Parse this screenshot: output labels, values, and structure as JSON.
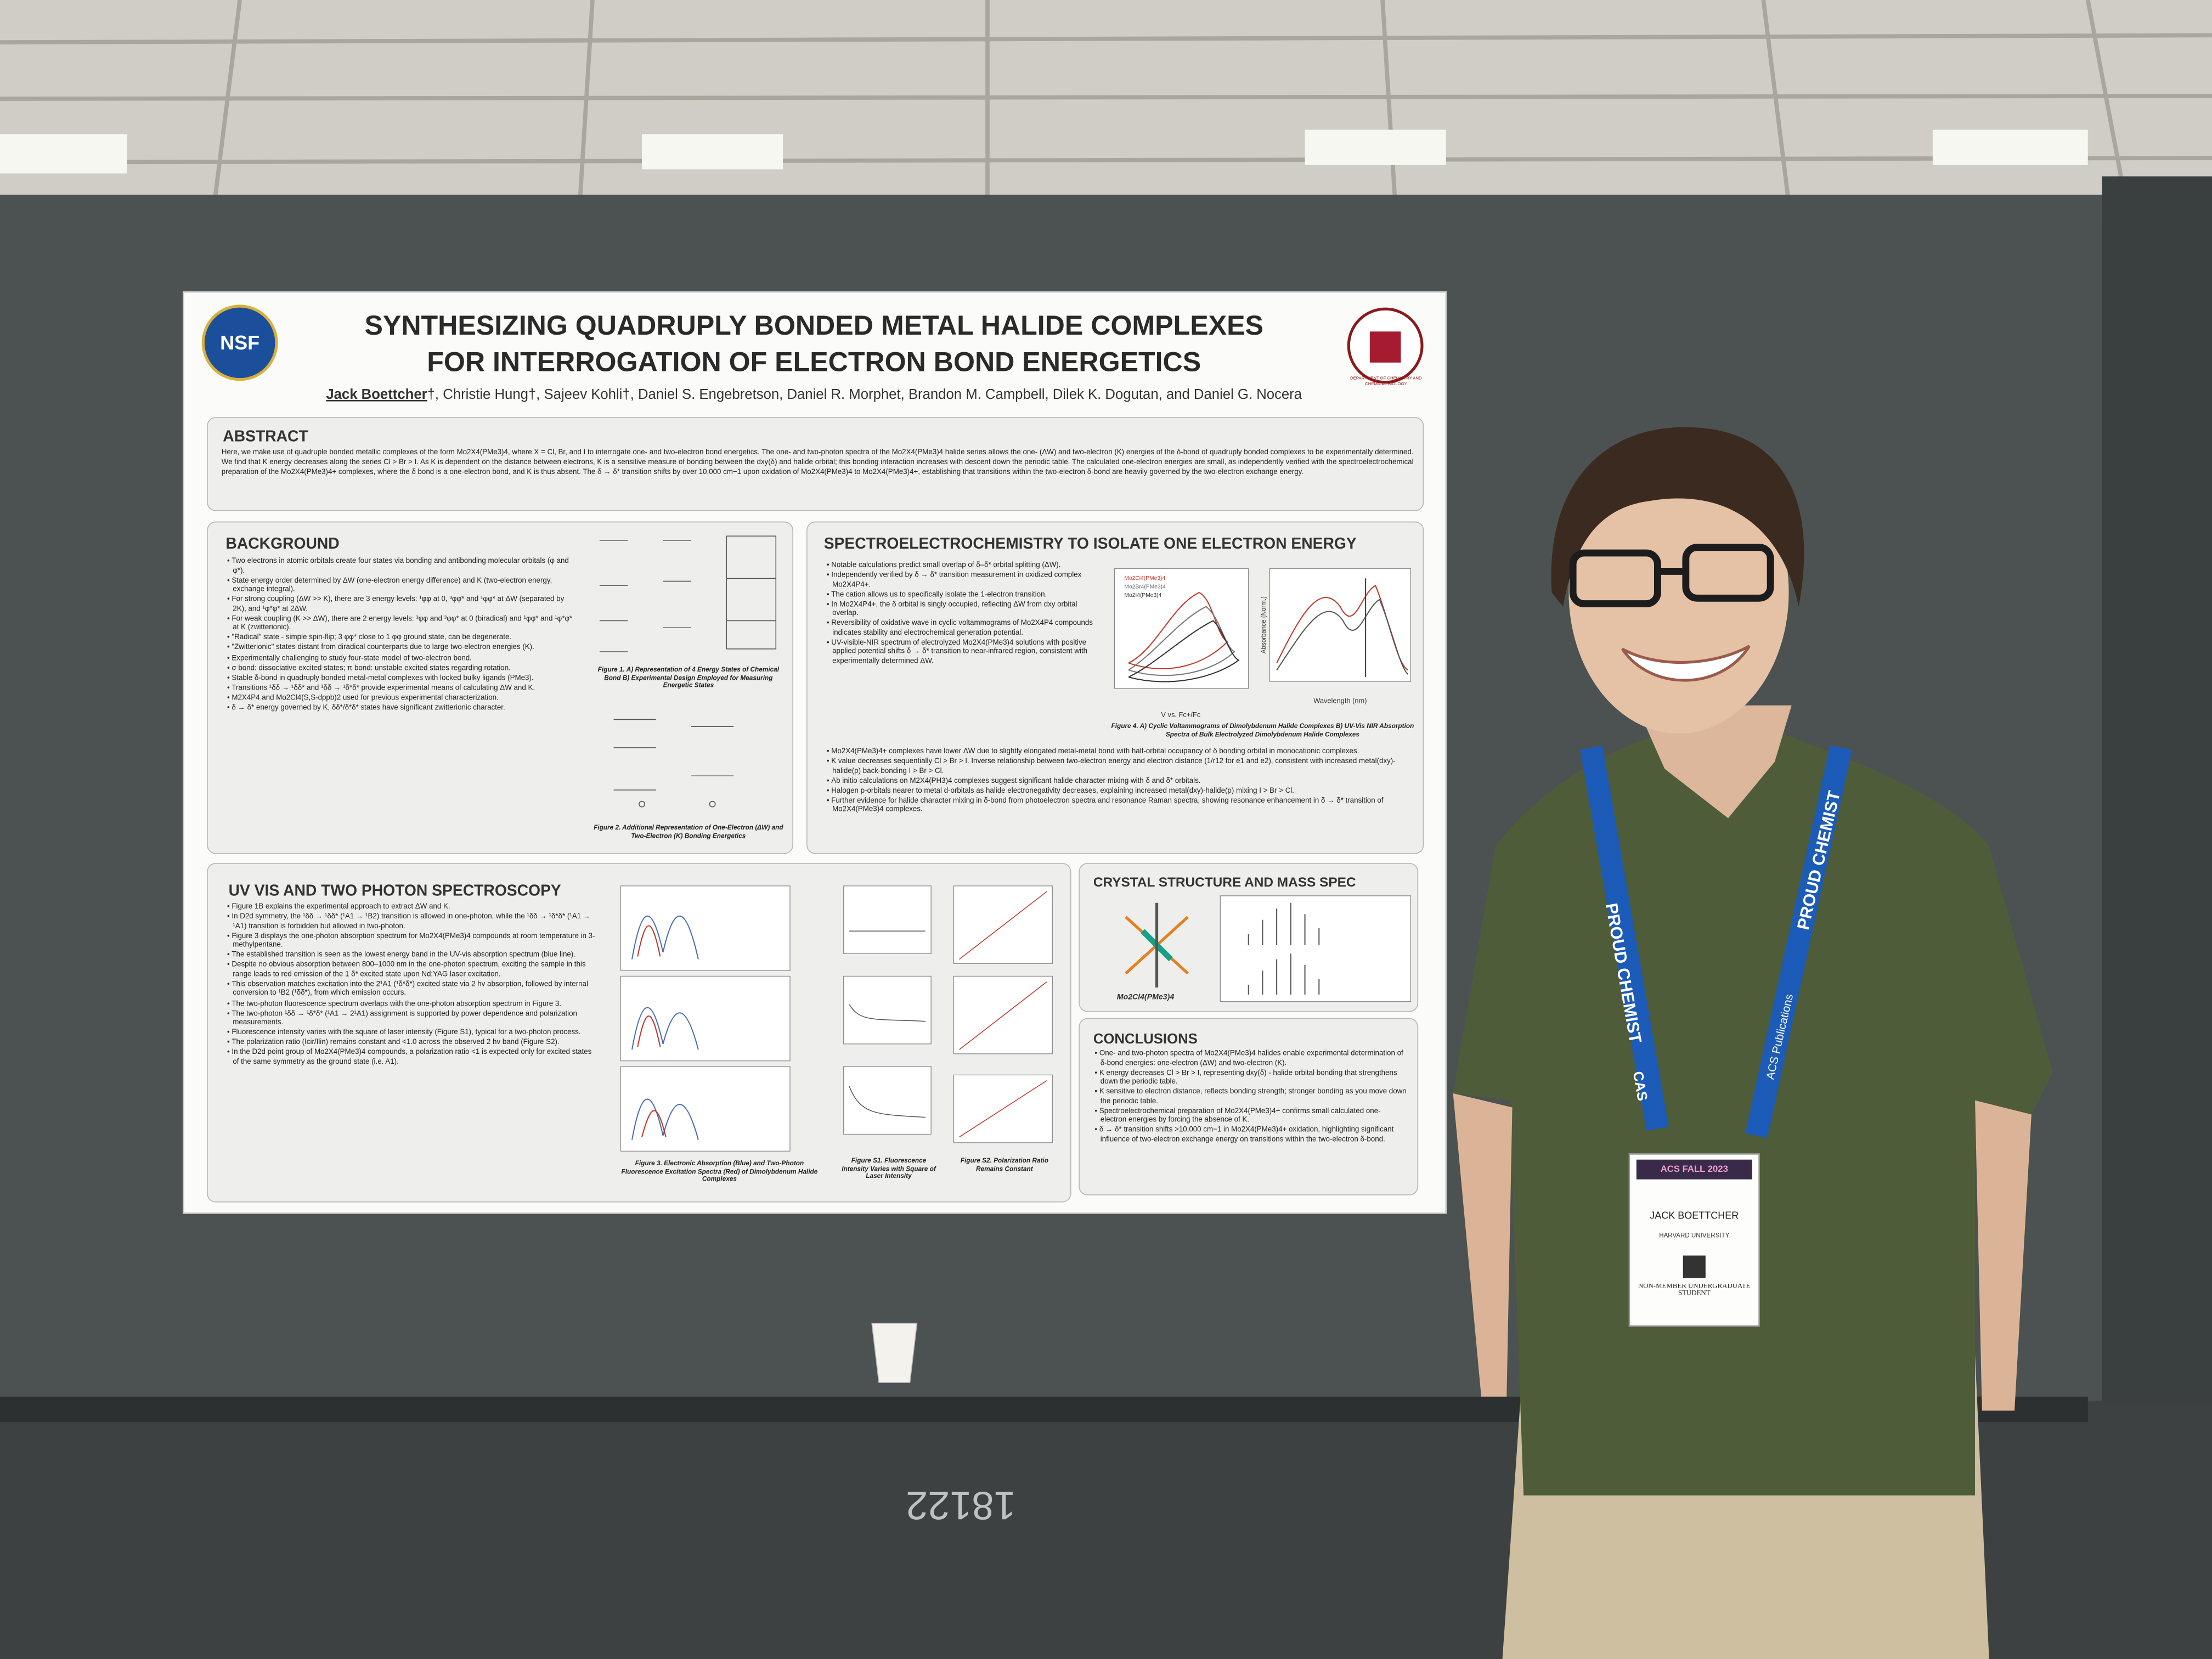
{
  "poster": {
    "logo": "NSF",
    "title": [
      "SYNTHESIZING QUADRUPLY BONDED METAL HALIDE COMPLEXES",
      "FOR INTERROGATION OF ELECTRON BOND ENERGETICS"
    ],
    "first_author": "Jack Boettcher",
    "authors": "†, Christie Hung†, Sajeev Kohli†, Daniel S. Engebretson, Daniel R. Morphet, Brandon M. Campbell, Dilek K. Dogutan, and Daniel G. Nocera",
    "seal": "DEPARTMENT OF CHEMISTRY AND CHEMICAL BIOLOGY",
    "abstract": {
      "heading": "ABSTRACT",
      "text": "Here, we make use of quadruple bonded metallic complexes of the form Mo2X4(PMe3)4, where X = Cl, Br, and I to interrogate one- and two-electron bond energetics. The one- and two-photon spectra of the Mo2X4(PMe3)4 halide series allows the one- (ΔW) and two-electron (K) energies of the δ-bond of quadruply bonded complexes to be experimentally determined. We find that K energy decreases along the series Cl > Br > I. As K is dependent on the distance between electrons, K is a sensitive measure of bonding between the dxy(δ) and halide orbital; this bonding interaction increases with descent down the periodic table. The calculated one-electron energies are small, as independently verified with the spectroelectrochemical preparation of the Mo2X4(PMe3)4+ complexes, where the δ bond is a one-electron bond, and K is thus absent. The δ → δ* transition shifts by over 10,000 cm−1 upon oxidation of Mo2X4(PMe3)4 to Mo2X4(PMe3)4+, establishing that transitions within the two-electron δ-bond are heavily governed by the two-electron exchange energy."
    },
    "background": {
      "heading": "BACKGROUND",
      "bullets": [
        "Two electrons in atomic orbitals create four states via bonding and antibonding molecular orbitals (φ and φ*).",
        "State energy order determined by ΔW (one-electron energy difference) and K (two-electron energy, exchange integral).",
        "For strong coupling (ΔW >> K), there are 3 energy levels: ¹φφ at 0, ³φφ* and ¹φφ* at ΔW (separated by 2K), and ¹φ*φ* at 2ΔW.",
        "For weak coupling (K >> ΔW), there are 2 energy levels: ³φφ and ³φφ* at 0 (biradical) and ¹φφ* and ¹φ*φ* at K (zwitterionic).",
        "\"Radical\" state - simple spin-flip; 3 φφ* close to 1 φφ ground state, can be degenerate.",
        "\"Zwitterionic\" states distant from diradical counterparts due to large two-electron energies (K).",
        "Experimentally challenging to study four-state model of two-electron bond.",
        "σ bond: dissociative excited states; π bond: unstable excited states regarding rotation.",
        "Stable δ-bond in quadruply bonded metal-metal complexes with locked bulky ligands (PMe3).",
        "Transitions ¹δδ → ¹δδ* and ¹δδ → ¹δ*δ* provide experimental means of calculating ΔW and K.",
        "M2X4P4 and Mo2Cl4(S,S-dppb)2 used for previous experimental characterization.",
        "δ → δ* energy governed by K, δδ*/δ*δ* states have significant zwitterionic character."
      ],
      "caption_1": "Figure 1. A) Representation of 4 Energy States of Chemical Bond B) Experimental Design Employed for Measuring Energetic States",
      "caption_2": "Figure 2. Additional Representation of One-Electron (ΔW) and Two-Electron (K) Bonding Energetics"
    },
    "spectro": {
      "heading": "SPECTROELECTROCHEMISTRY TO ISOLATE ONE ELECTRON ENERGY",
      "bullets": [
        "Notable calculations predict small overlap of δ–δ* orbital splitting (ΔW).",
        "Independently verified by δ → δ* transition measurement in oxidized complex Mo2X4P4+.",
        "The cation allows us to specifically isolate the 1-electron transition.",
        "In Mo2X4P4+, the δ orbital is singly occupied, reflecting ΔW from dxy orbital overlap.",
        "Reversibility of oxidative wave in cyclic voltammograms of Mo2X4P4 compounds indicates stability and electrochemical generation potential.",
        "UV-visible-NIR spectrum of electrolyzed Mo2X4(PMe3)4 solutions with positive applied potential shifts δ → δ* transition to near-infrared region, consistent with experimentally determined ΔW."
      ],
      "bullets_lower": [
        "Mo2X4(PMe3)4+ complexes have lower ΔW due to slightly elongated metal-metal bond with half-orbital occupancy of δ bonding orbital in monocationic complexes.",
        "K value decreases sequentially Cl > Br > I. Inverse relationship between two-electron energy and electron distance (1/r12 for e1 and e2), consistent with increased metal(dxy)-halide(p) back-bonding I > Br > Cl.",
        "Ab initio calculations on M2X4(PH3)4 complexes suggest significant halide character mixing with δ and δ* orbitals.",
        "Halogen p-orbitals nearer to metal d-orbitals as halide electronegativity decreases, explaining increased metal(dxy)-halide(p) mixing I > Br > Cl.",
        "Further evidence for halide character mixing in δ-bond from photoelectron spectra and resonance Raman spectra, showing resonance enhancement in δ → δ* transition of Mo2X4(PMe3)4 complexes."
      ],
      "legend": [
        "Mo2Cl4(PMe3)4",
        "Mo2Br4(PMe3)4",
        "Mo2I4(PMe3)4"
      ],
      "axis_a": "V vs. Fc+/Fc",
      "axis_b": "Wavelength (nm)",
      "axis_b_y": "Absorbance (Norm.)",
      "caption": "Figure 4. A) Cyclic Voltammograms of Dimolybdenum Halide Complexes B) UV-Vis NIR Absorption Spectra of Bulk Electrolyzed Dimolybdenum Halide Complexes"
    },
    "uvvis": {
      "heading": "UV VIS AND TWO PHOTON SPECTROSCOPY",
      "bullets": [
        "Figure 1B explains the experimental approach to extract ΔW and K.",
        "In D2d symmetry, the ¹δδ → ¹δδ* (¹A1 → ¹B2) transition is allowed in one-photon, while the ¹δδ → ¹δ*δ* (¹A1 → ¹A1) transition is forbidden but allowed in two-photon.",
        "Figure 3 displays the one-photon absorption spectrum for Mo2X4(PMe3)4 compounds at room temperature in 3-methylpentane.",
        "The established transition is seen as the lowest energy band in the UV-vis absorption spectrum (blue line).",
        "Despite no obvious absorption between 800–1000 nm in the one-photon spectrum, exciting the sample in this range leads to red emission of the 1 δ* excited state upon Nd:YAG laser excitation.",
        "This observation matches excitation into the 2¹A1 (¹δ*δ*) excited state via 2 hv absorption, followed by internal conversion to ¹B2 (¹δδ*), from which emission occurs.",
        "The two-photon fluorescence spectrum overlaps with the one-photon absorption spectrum in Figure 3.",
        "The two-photon ¹δδ → ¹δ*δ* (¹A1 → 2¹A1) assignment is supported by power dependence and polarization measurements.",
        "Fluorescence intensity varies with the square of laser intensity (Figure S1), typical for a two-photon process.",
        "The polarization ratio (Icir/Ilin) remains constant and <1.0 across the observed 2 hv band (Figure S2).",
        "In the D2d point group of Mo2X4(PMe3)4 compounds, a polarization ratio <1 is expected only for excited states of the same symmetry as the ground state (i.e. A1)."
      ],
      "caption_3": "Figure 3. Electronic Absorption (Blue) and Two-Photon Fluorescence Excitation Spectra (Red) of Dimolybdenum Halide Complexes",
      "caption_s1": "Figure S1. Fluorescence Intensity Varies with Square of Laser Intensity",
      "caption_s2": "Figure S2. Polarization Ratio Remains Constant"
    },
    "crystal": {
      "heading": "CRYSTAL STRUCTURE AND MASS SPEC",
      "label": "Mo2Cl4(PMe3)4"
    },
    "conclusions": {
      "heading": "CONCLUSIONS",
      "bullets": [
        "One- and two-photon spectra of Mo2X4(PMe3)4 halides enable experimental determination of δ-bond energies: one-electron (ΔW) and two-electron (K).",
        "K energy decreases Cl > Br > I, representing dxy(δ) - halide orbital bonding that strengthens down the periodic table.",
        "K sensitive to electron distance, reflects bonding strength; stronger bonding as you move down the periodic table.",
        "Spectroelectrochemical preparation of Mo2X4(PMe3)4+ confirms small calculated one-electron energies by forcing the absence of K.",
        "δ → δ* transition shifts >10,000 cm−1 in Mo2X4(PMe3)4+ oxidation, highlighting significant influence of two-electron exchange energy on transitions within the two-electron δ-bond."
      ]
    }
  },
  "badge": {
    "event": "ACS FALL 2023",
    "name": "JACK BOETTCHER",
    "affiliation": "HARVARD UNIVERSITY",
    "status": "NON-MEMBER UNDERGRADUATE STUDENT"
  },
  "lanyard": {
    "left": "PROUD CHEMIST",
    "right": "PROUD CHEMIST",
    "cas": "CAS",
    "publisher": "ACS Publications"
  },
  "floor_marking": "18122"
}
